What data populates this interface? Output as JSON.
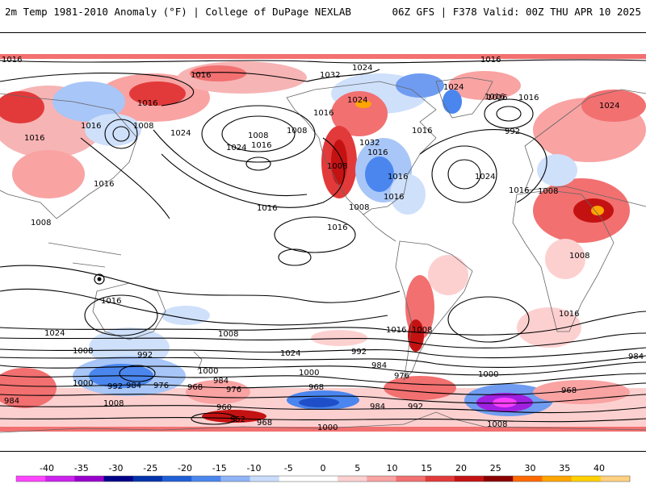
{
  "header": {
    "left": "2m Temp 1981-2010 Anomaly (°F) | College of DuPage NEXLAB",
    "right": "06Z GFS | F378 Valid: 00Z THU APR 10 2025"
  },
  "isobars": [
    {
      "text": "1016"
    },
    {
      "text": "1016"
    },
    {
      "text": "1016"
    },
    {
      "text": "1024"
    },
    {
      "text": "1016"
    },
    {
      "text": "1032"
    },
    {
      "text": "1024"
    },
    {
      "text": "1016"
    },
    {
      "text": "1016"
    },
    {
      "text": "1024"
    },
    {
      "text": "1008"
    },
    {
      "text": "1016"
    },
    {
      "text": "1016"
    },
    {
      "text": "1008"
    },
    {
      "text": "1024"
    },
    {
      "text": "1016"
    },
    {
      "text": "1008"
    },
    {
      "text": "1016"
    },
    {
      "text": "1032"
    },
    {
      "text": "1024"
    },
    {
      "text": "1016"
    },
    {
      "text": "992"
    },
    {
      "text": "1024"
    },
    {
      "text": "1016"
    },
    {
      "text": "1008"
    },
    {
      "text": "1024"
    },
    {
      "text": "1016"
    },
    {
      "text": "1008"
    },
    {
      "text": "1008"
    },
    {
      "text": "1016"
    },
    {
      "text": "1008"
    },
    {
      "text": "1016"
    },
    {
      "text": "1008"
    },
    {
      "text": "1016"
    },
    {
      "text": "1016"
    },
    {
      "text": "1016"
    },
    {
      "text": "1024"
    },
    {
      "text": "1016"
    },
    {
      "text": "1008"
    },
    {
      "text": "1008"
    },
    {
      "text": "1016"
    },
    {
      "text": "1016"
    },
    {
      "text": "1024"
    },
    {
      "text": "992"
    },
    {
      "text": "1016"
    },
    {
      "text": "1024"
    },
    {
      "text": "984"
    },
    {
      "text": "1000"
    },
    {
      "text": "1008"
    },
    {
      "text": "992"
    },
    {
      "text": "1000"
    },
    {
      "text": "992"
    },
    {
      "text": "976"
    },
    {
      "text": "1008"
    },
    {
      "text": "984"
    },
    {
      "text": "968"
    },
    {
      "text": "976"
    },
    {
      "text": "984"
    },
    {
      "text": "1000"
    },
    {
      "text": "984"
    },
    {
      "text": "968"
    },
    {
      "text": "976"
    },
    {
      "text": "984"
    },
    {
      "text": "992"
    },
    {
      "text": "1008"
    },
    {
      "text": "1000"
    },
    {
      "text": "968"
    },
    {
      "text": "960"
    },
    {
      "text": "952"
    },
    {
      "text": "968"
    },
    {
      "text": "1000"
    },
    {
      "text": "1008"
    },
    {
      "text": "976"
    },
    {
      "text": "984"
    },
    {
      "text": "1000"
    }
  ],
  "colorbar": {
    "ticks": [
      "-40",
      "-35",
      "-30",
      "-25",
      "-20",
      "-15",
      "-10",
      "-5",
      "0",
      "5",
      "10",
      "15",
      "20",
      "25",
      "30",
      "35",
      "40"
    ],
    "colors": [
      "#ff44ff",
      "#cc22ee",
      "#9900cc",
      "#000088",
      "#0033aa",
      "#1f5fd6",
      "#4a86ee",
      "#8fb4f7",
      "#c9dcfb",
      "#ffffff",
      "#ffffff",
      "#fdd0d0",
      "#f9a3a3",
      "#f27070",
      "#e23a3a",
      "#c41212",
      "#8a0000",
      "#ff6a00",
      "#ffa500",
      "#ffd000",
      "#ffd080"
    ]
  },
  "colors": {
    "warm_light": "#f7b4b4",
    "warm": "#ee6a6a",
    "warm_strong": "#d01515",
    "cool_light": "#cfe0fb",
    "cool": "#6f9cf0",
    "cool_strong": "#1f4fc8",
    "purple": "#a020e0",
    "magenta": "#ff40ff",
    "coast": "#888888",
    "isobar": "#000000"
  }
}
